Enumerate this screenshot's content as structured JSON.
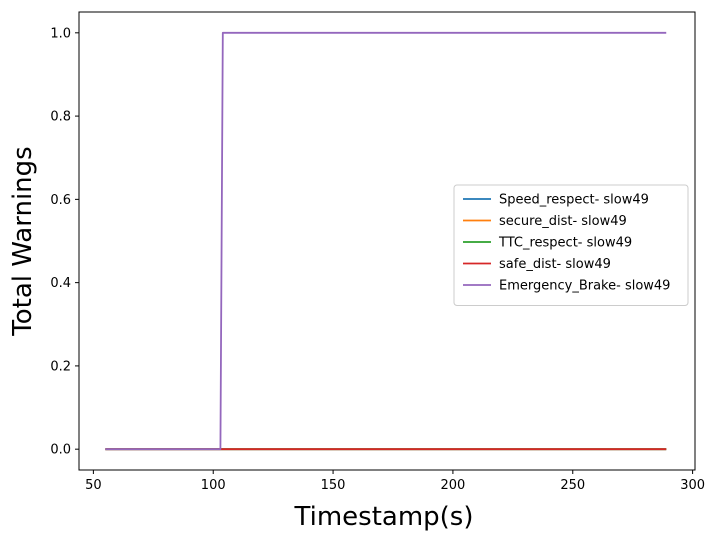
{
  "chart_data": {
    "type": "line",
    "title": "",
    "xlabel": "Timestamp(s)",
    "ylabel": "Total Warnings",
    "xlim": [
      44,
      301
    ],
    "ylim": [
      -0.05,
      1.05
    ],
    "xticks": [
      50,
      100,
      150,
      200,
      250,
      300
    ],
    "yticks": [
      0.0,
      0.2,
      0.4,
      0.6,
      0.8,
      1.0
    ],
    "xtick_labels": [
      "50",
      "100",
      "150",
      "200",
      "250",
      "300"
    ],
    "ytick_labels": [
      "0.0",
      "0.2",
      "0.4",
      "0.6",
      "0.8",
      "1.0"
    ],
    "grid": false,
    "legend_position": "center-right",
    "series": [
      {
        "name": "Speed_respect- slow49",
        "color": "#1f77b4",
        "x": [
          55,
          289
        ],
        "y": [
          0,
          0
        ]
      },
      {
        "name": "secure_dist- slow49",
        "color": "#ff7f0e",
        "x": [
          55,
          289
        ],
        "y": [
          0,
          0
        ]
      },
      {
        "name": "TTC_respect- slow49",
        "color": "#2ca02c",
        "x": [
          55,
          289
        ],
        "y": [
          0,
          0
        ]
      },
      {
        "name": "safe_dist- slow49",
        "color": "#d62728",
        "x": [
          55,
          289
        ],
        "y": [
          0,
          0
        ]
      },
      {
        "name": "Emergency_Brake- slow49",
        "color": "#9467bd",
        "x": [
          55,
          103,
          104,
          289
        ],
        "y": [
          0,
          0,
          1,
          1
        ]
      }
    ]
  }
}
